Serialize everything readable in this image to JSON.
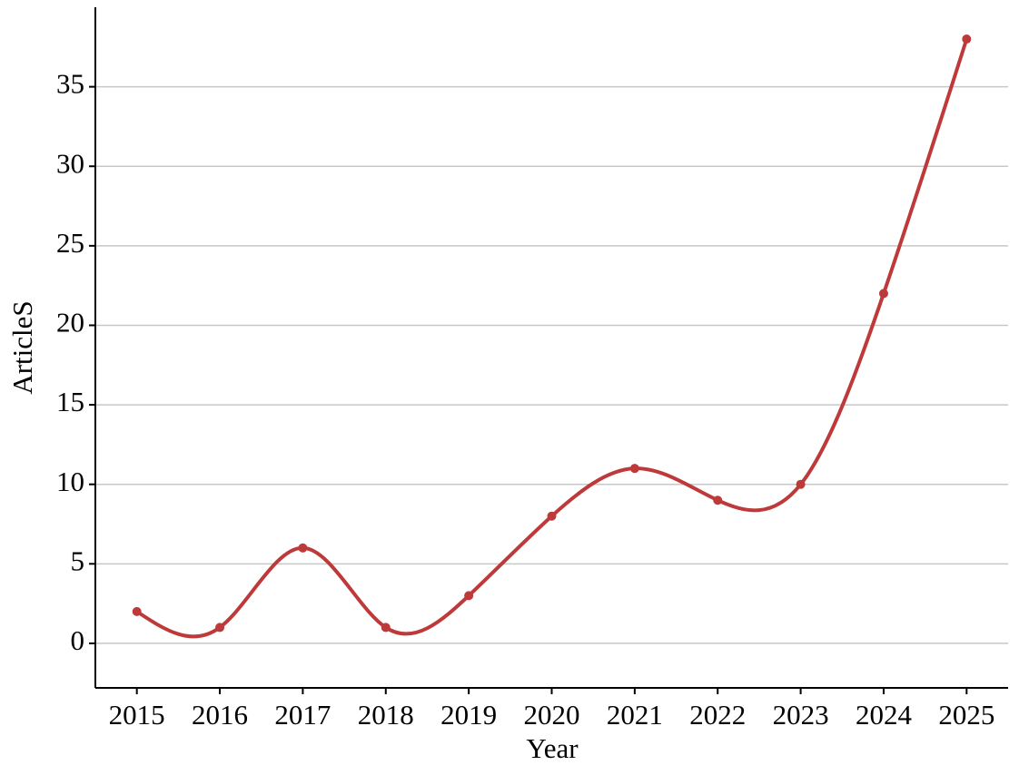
{
  "chart_data": {
    "type": "line",
    "x_label": "Year",
    "y_label": "ArticleS",
    "x": [
      2015,
      2016,
      2017,
      2018,
      2019,
      2020,
      2021,
      2022,
      2023,
      2024,
      2025
    ],
    "series": [
      {
        "color": "#be3a3a",
        "values": [
          2,
          1,
          6,
          1,
          3,
          8,
          11,
          9,
          10,
          22,
          38
        ]
      }
    ],
    "xlim": [
      2014.5,
      2025.5
    ],
    "xticks": [
      2015,
      2016,
      2017,
      2018,
      2019,
      2020,
      2021,
      2022,
      2023,
      2024,
      2025
    ],
    "ylim": [
      -2.8,
      40
    ],
    "yticks": [
      0,
      5,
      10,
      15,
      20,
      25,
      30,
      35
    ],
    "grid": true,
    "smooth": true
  }
}
